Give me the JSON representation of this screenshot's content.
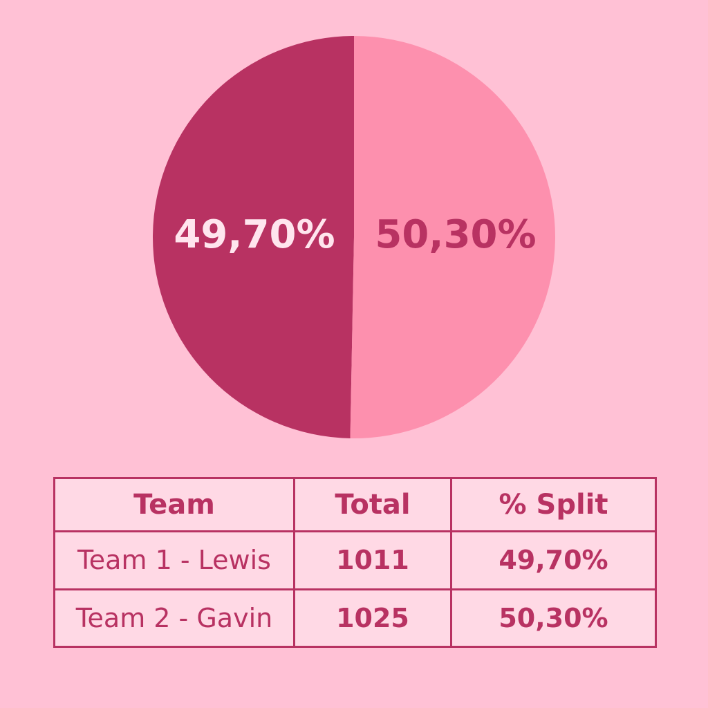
{
  "chart_data": {
    "type": "pie",
    "slices": [
      {
        "label": "49,70%",
        "value": 49.7,
        "color": "#b83262",
        "label_color": "#ffe5ee"
      },
      {
        "label": "50,30%",
        "value": 50.3,
        "color": "#fd90ae",
        "label_color": "#b83262"
      }
    ]
  },
  "table": {
    "headers": [
      "Team",
      "Total",
      "% Split"
    ],
    "rows": [
      [
        "Team 1 - Lewis",
        "1011",
        "49,70%"
      ],
      [
        "Team 2 - Gavin",
        "1025",
        "50,30%"
      ]
    ]
  },
  "colors": {
    "background": "#ffc1d5",
    "accent": "#b83262",
    "light_slice": "#fd90ae",
    "table_fill": "#ffd9e5"
  }
}
